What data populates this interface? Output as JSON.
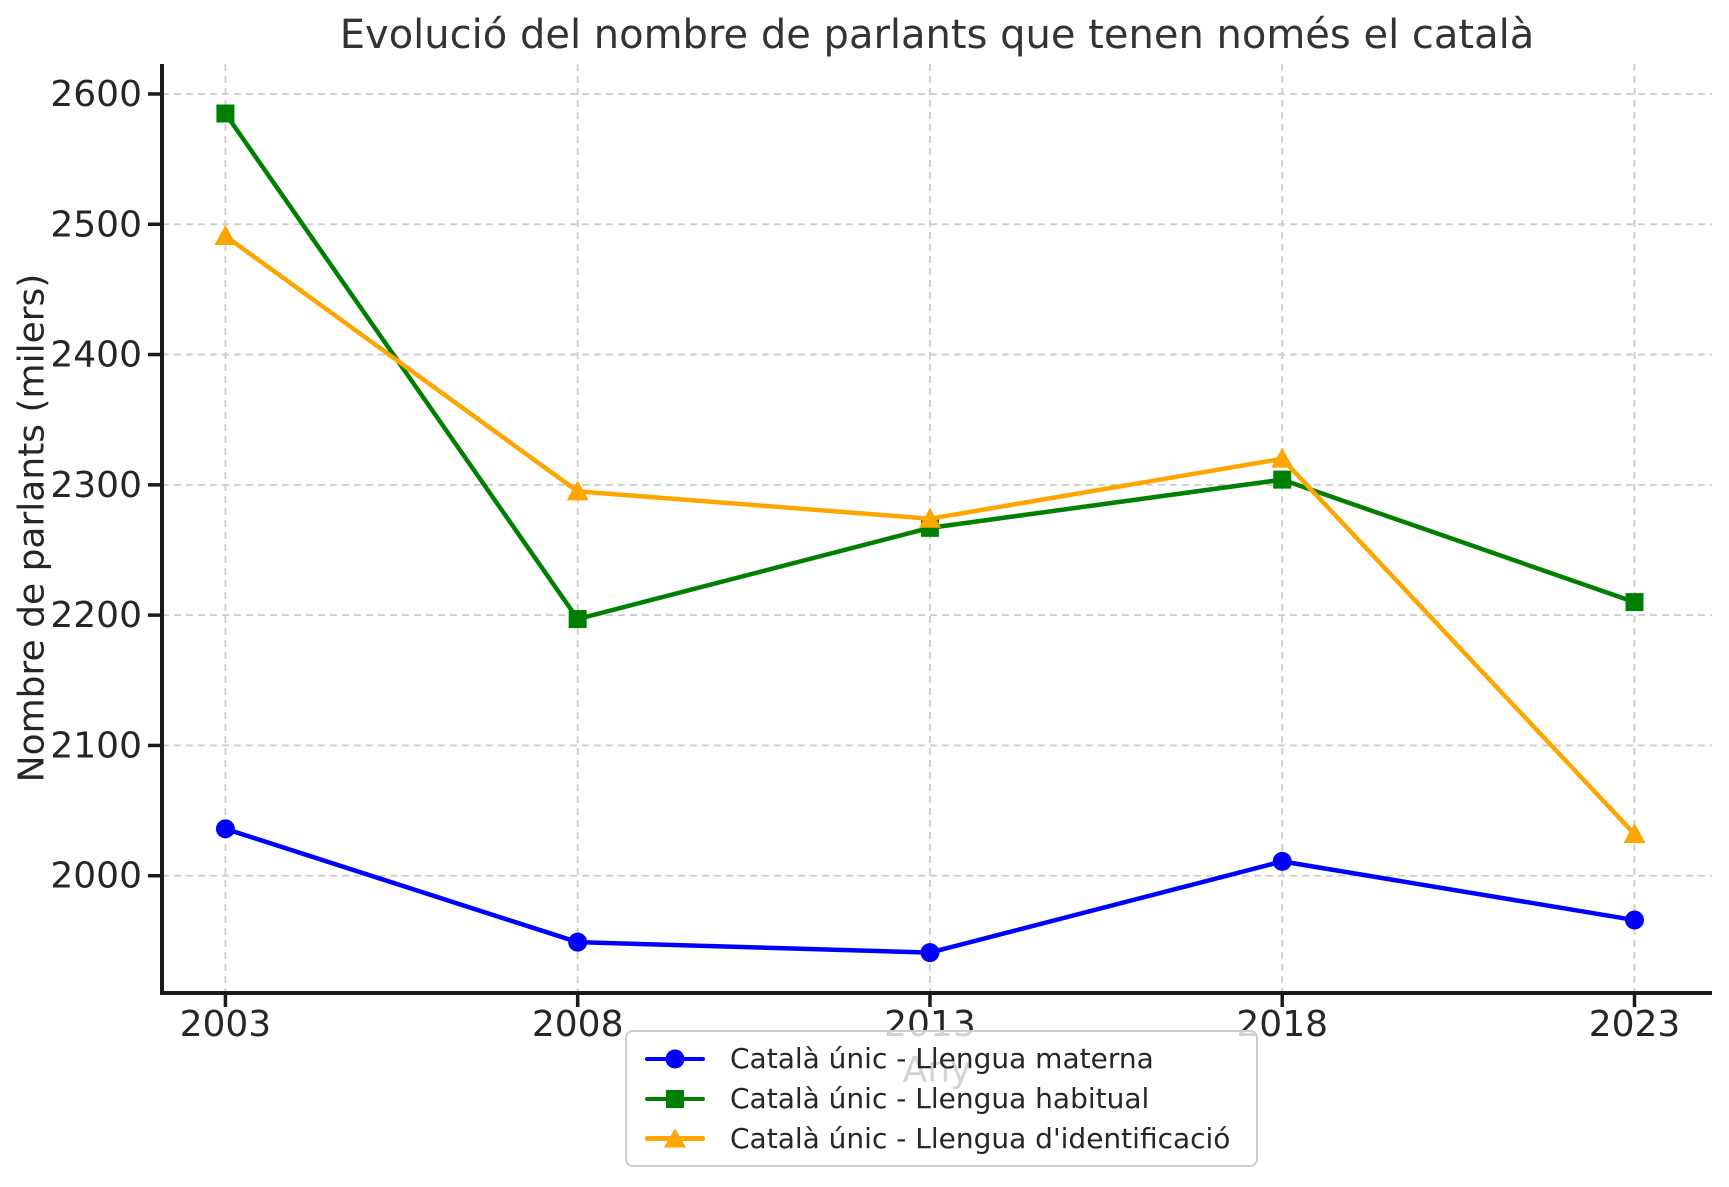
{
  "chart_data": {
    "type": "line",
    "title": "Evolució del nombre de parlants que tenen només el català",
    "xlabel": "Any",
    "ylabel": "Nombre de parlants (milers)",
    "x": [
      2003,
      2008,
      2013,
      2018,
      2023
    ],
    "x_tick_labels": [
      "2003",
      "2008",
      "2013",
      "2018",
      "2023"
    ],
    "yticks": [
      2000,
      2100,
      2200,
      2300,
      2400,
      2500,
      2600
    ],
    "xlim": [
      2002.1,
      2024.1
    ],
    "ylim": [
      1910,
      2623
    ],
    "grid": true,
    "grid_style": "dashed",
    "legend_position": "bottom-center-below-axis",
    "series": [
      {
        "name": "Català únic - Llengua materna",
        "color": "#0000ff",
        "marker": "circle",
        "values": [
          2036,
          1949,
          1941,
          2011,
          1966
        ]
      },
      {
        "name": "Català únic - Llengua habitual",
        "color": "#008000",
        "marker": "square",
        "values": [
          2585,
          2197,
          2267,
          2304,
          2210
        ]
      },
      {
        "name": "Català únic - Llengua d'identificació",
        "color": "#ffa500",
        "marker": "triangle",
        "values": [
          2491,
          2295,
          2274,
          2320,
          2032
        ]
      }
    ],
    "colors": {
      "grid": "#cccccc",
      "axis": "#1a1a1a",
      "tick_text": "#262626",
      "title_text": "#333333",
      "legend_border": "#cccccc",
      "legend_background": "rgba(255,255,255,0.8)"
    }
  }
}
